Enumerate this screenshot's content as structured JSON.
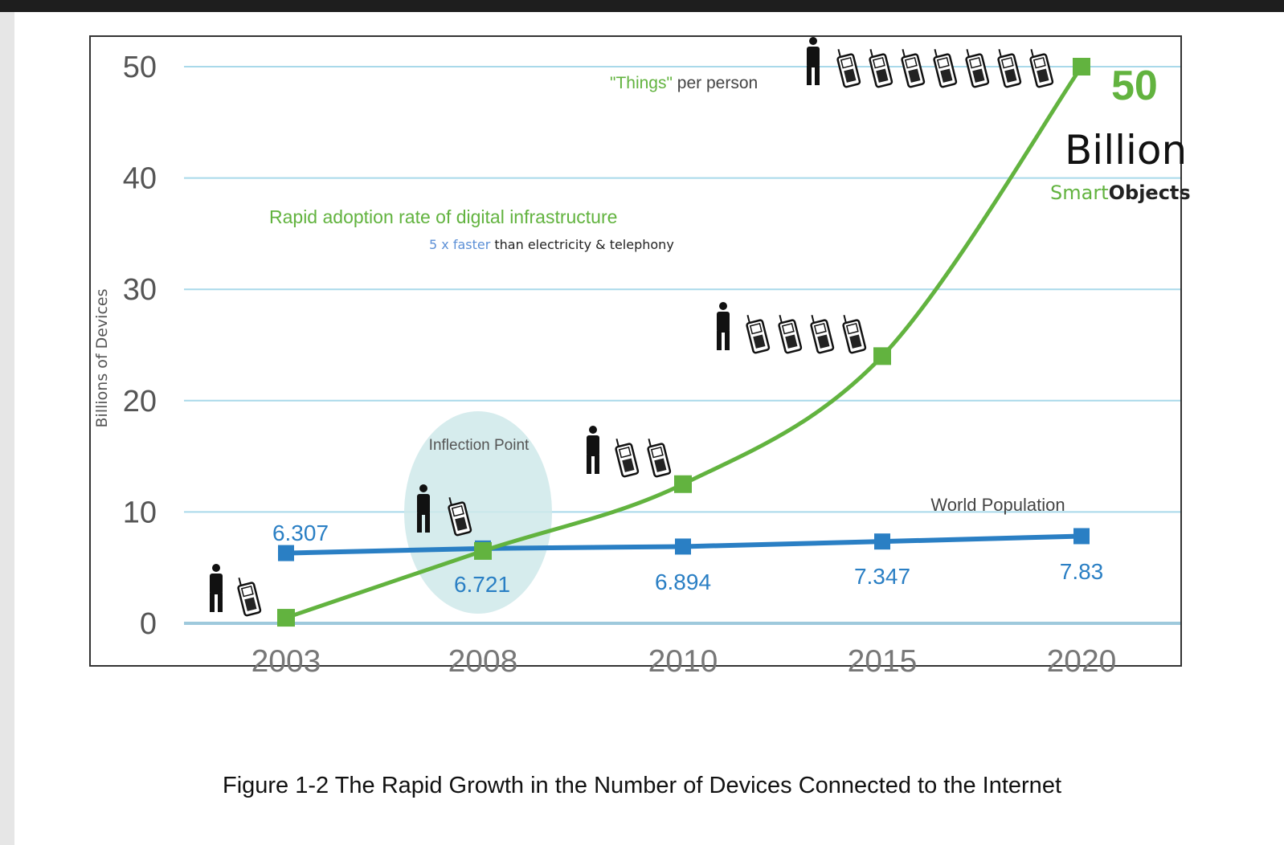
{
  "caption": "Figure 1-2 The Rapid Growth in the Number of Devices Connected to the Internet",
  "colors": {
    "things": "#62b33f",
    "population": "#2a7fc4",
    "grid": "#a9d9ea",
    "inflection": "#cfe9ea",
    "axis_text": "#555555"
  },
  "icons": [
    "person-icon",
    "phone-icon"
  ],
  "chart_data": {
    "type": "line",
    "title": "",
    "xlabel": "",
    "ylabel": "Billions of Devices",
    "ylim": [
      0,
      50
    ],
    "yticks": [
      0,
      10,
      20,
      30,
      40,
      50
    ],
    "grid": true,
    "categories": [
      "2003",
      "2008",
      "2010",
      "2015",
      "2020"
    ],
    "series": [
      {
        "name": "",
        "values": [
          0.5,
          6.5,
          12.5,
          24,
          50
        ],
        "color": "#62b33f"
      },
      {
        "name": "World Population",
        "values": [
          6.307,
          6.721,
          6.894,
          7.347,
          7.83
        ],
        "labels": [
          "6.307",
          "6.721",
          "6.894",
          "7.347",
          "7.83"
        ],
        "color": "#2a7fc4"
      }
    ],
    "things_per_person": {
      "quoted": "\"Things\"",
      "rest": " per person",
      "phone_counts": [
        1,
        1,
        2,
        4,
        7
      ]
    },
    "annotations": {
      "inflection_point": "Inflection Point",
      "adoption_title": "Rapid adoption rate of digital infrastructure",
      "adoption_highlight": "5 x faster",
      "adoption_rest": " than electricity & telephony",
      "big_number": "50",
      "big_unit": "Billion",
      "smart": "Smart",
      "objects": "Objects"
    }
  }
}
